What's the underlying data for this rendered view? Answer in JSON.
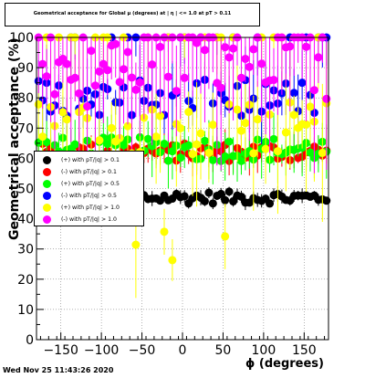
{
  "chart_data": {
    "type": "scatter",
    "title": "Geometrical acceptance for Global $\\mu$ (degrees) at | $\\eta$ | <= 1.0 at pT > 0.11",
    "xlabel": "ϕ (degrees)",
    "ylabel": "Geometrical acceptance (%)",
    "xlim": [
      -180,
      180
    ],
    "ylim": [
      0,
      100
    ],
    "x_ticks": [
      -150,
      -100,
      -50,
      0,
      50,
      100,
      150
    ],
    "y_ticks": [
      0,
      10,
      20,
      30,
      40,
      50,
      60,
      70,
      80,
      90,
      100
    ],
    "grid": true,
    "legend_position": "left-middle",
    "series": [
      {
        "name": "(+) with pT/|q| > 0.1",
        "color": "#000000",
        "mean": 47,
        "spread": 2,
        "errbar": 2
      },
      {
        "name": "(-) with pT/|q| > 0.1",
        "color": "#ff0000",
        "mean": 62,
        "spread": 3,
        "errbar": 5
      },
      {
        "name": "(+) with pT/|q| > 0.5",
        "color": "#00ff00",
        "mean": 63,
        "spread": 4,
        "errbar": 8
      },
      {
        "name": "(-) with pT/|q| > 0.5",
        "color": "#0000ff",
        "mean": 80,
        "spread": 6,
        "errbar": 10
      },
      {
        "name": "(+) with pT/|q| > 1.0",
        "color": "#ffff00",
        "mean": 70,
        "spread": 9,
        "errbar": 18
      },
      {
        "name": "(-) with pT/|q| > 1.0",
        "color": "#ff00ff",
        "mean": 88,
        "spread": 11,
        "errbar": 22
      }
    ]
  },
  "timestamp": "Wed Nov 25 11:43:26 2020"
}
